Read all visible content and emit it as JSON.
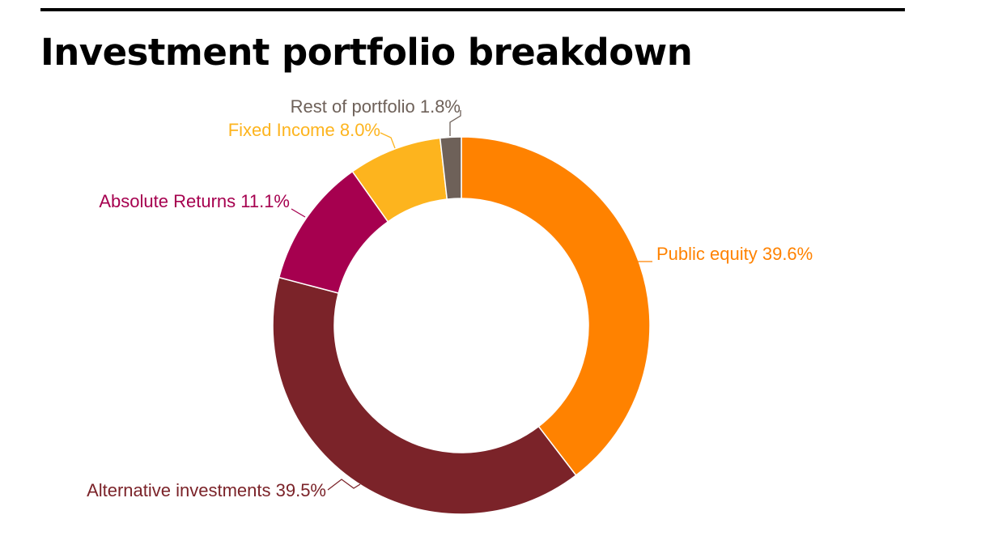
{
  "chart_data": {
    "type": "pie",
    "variant": "donut",
    "title": "Investment portfolio breakdown",
    "unit": "%",
    "slices": [
      {
        "name": "Public equity",
        "value": 39.6,
        "label": "Public equity 39.6%",
        "color": "#FF8200"
      },
      {
        "name": "Alternative investments",
        "value": 39.5,
        "label": "Alternative investments 39.5%",
        "color": "#7B2329"
      },
      {
        "name": "Absolute Returns",
        "value": 11.1,
        "label": "Absolute Returns 11.1%",
        "color": "#A6004F"
      },
      {
        "name": "Fixed Income",
        "value": 8.0,
        "label": "Fixed Income 8.0%",
        "color": "#FDB41E"
      },
      {
        "name": "Rest of portfolio",
        "value": 1.8,
        "label": "Rest of portfolio 1.8%",
        "color": "#6E6159"
      }
    ],
    "legend": "none",
    "start_angle": "12 o'clock",
    "direction": "clockwise"
  }
}
